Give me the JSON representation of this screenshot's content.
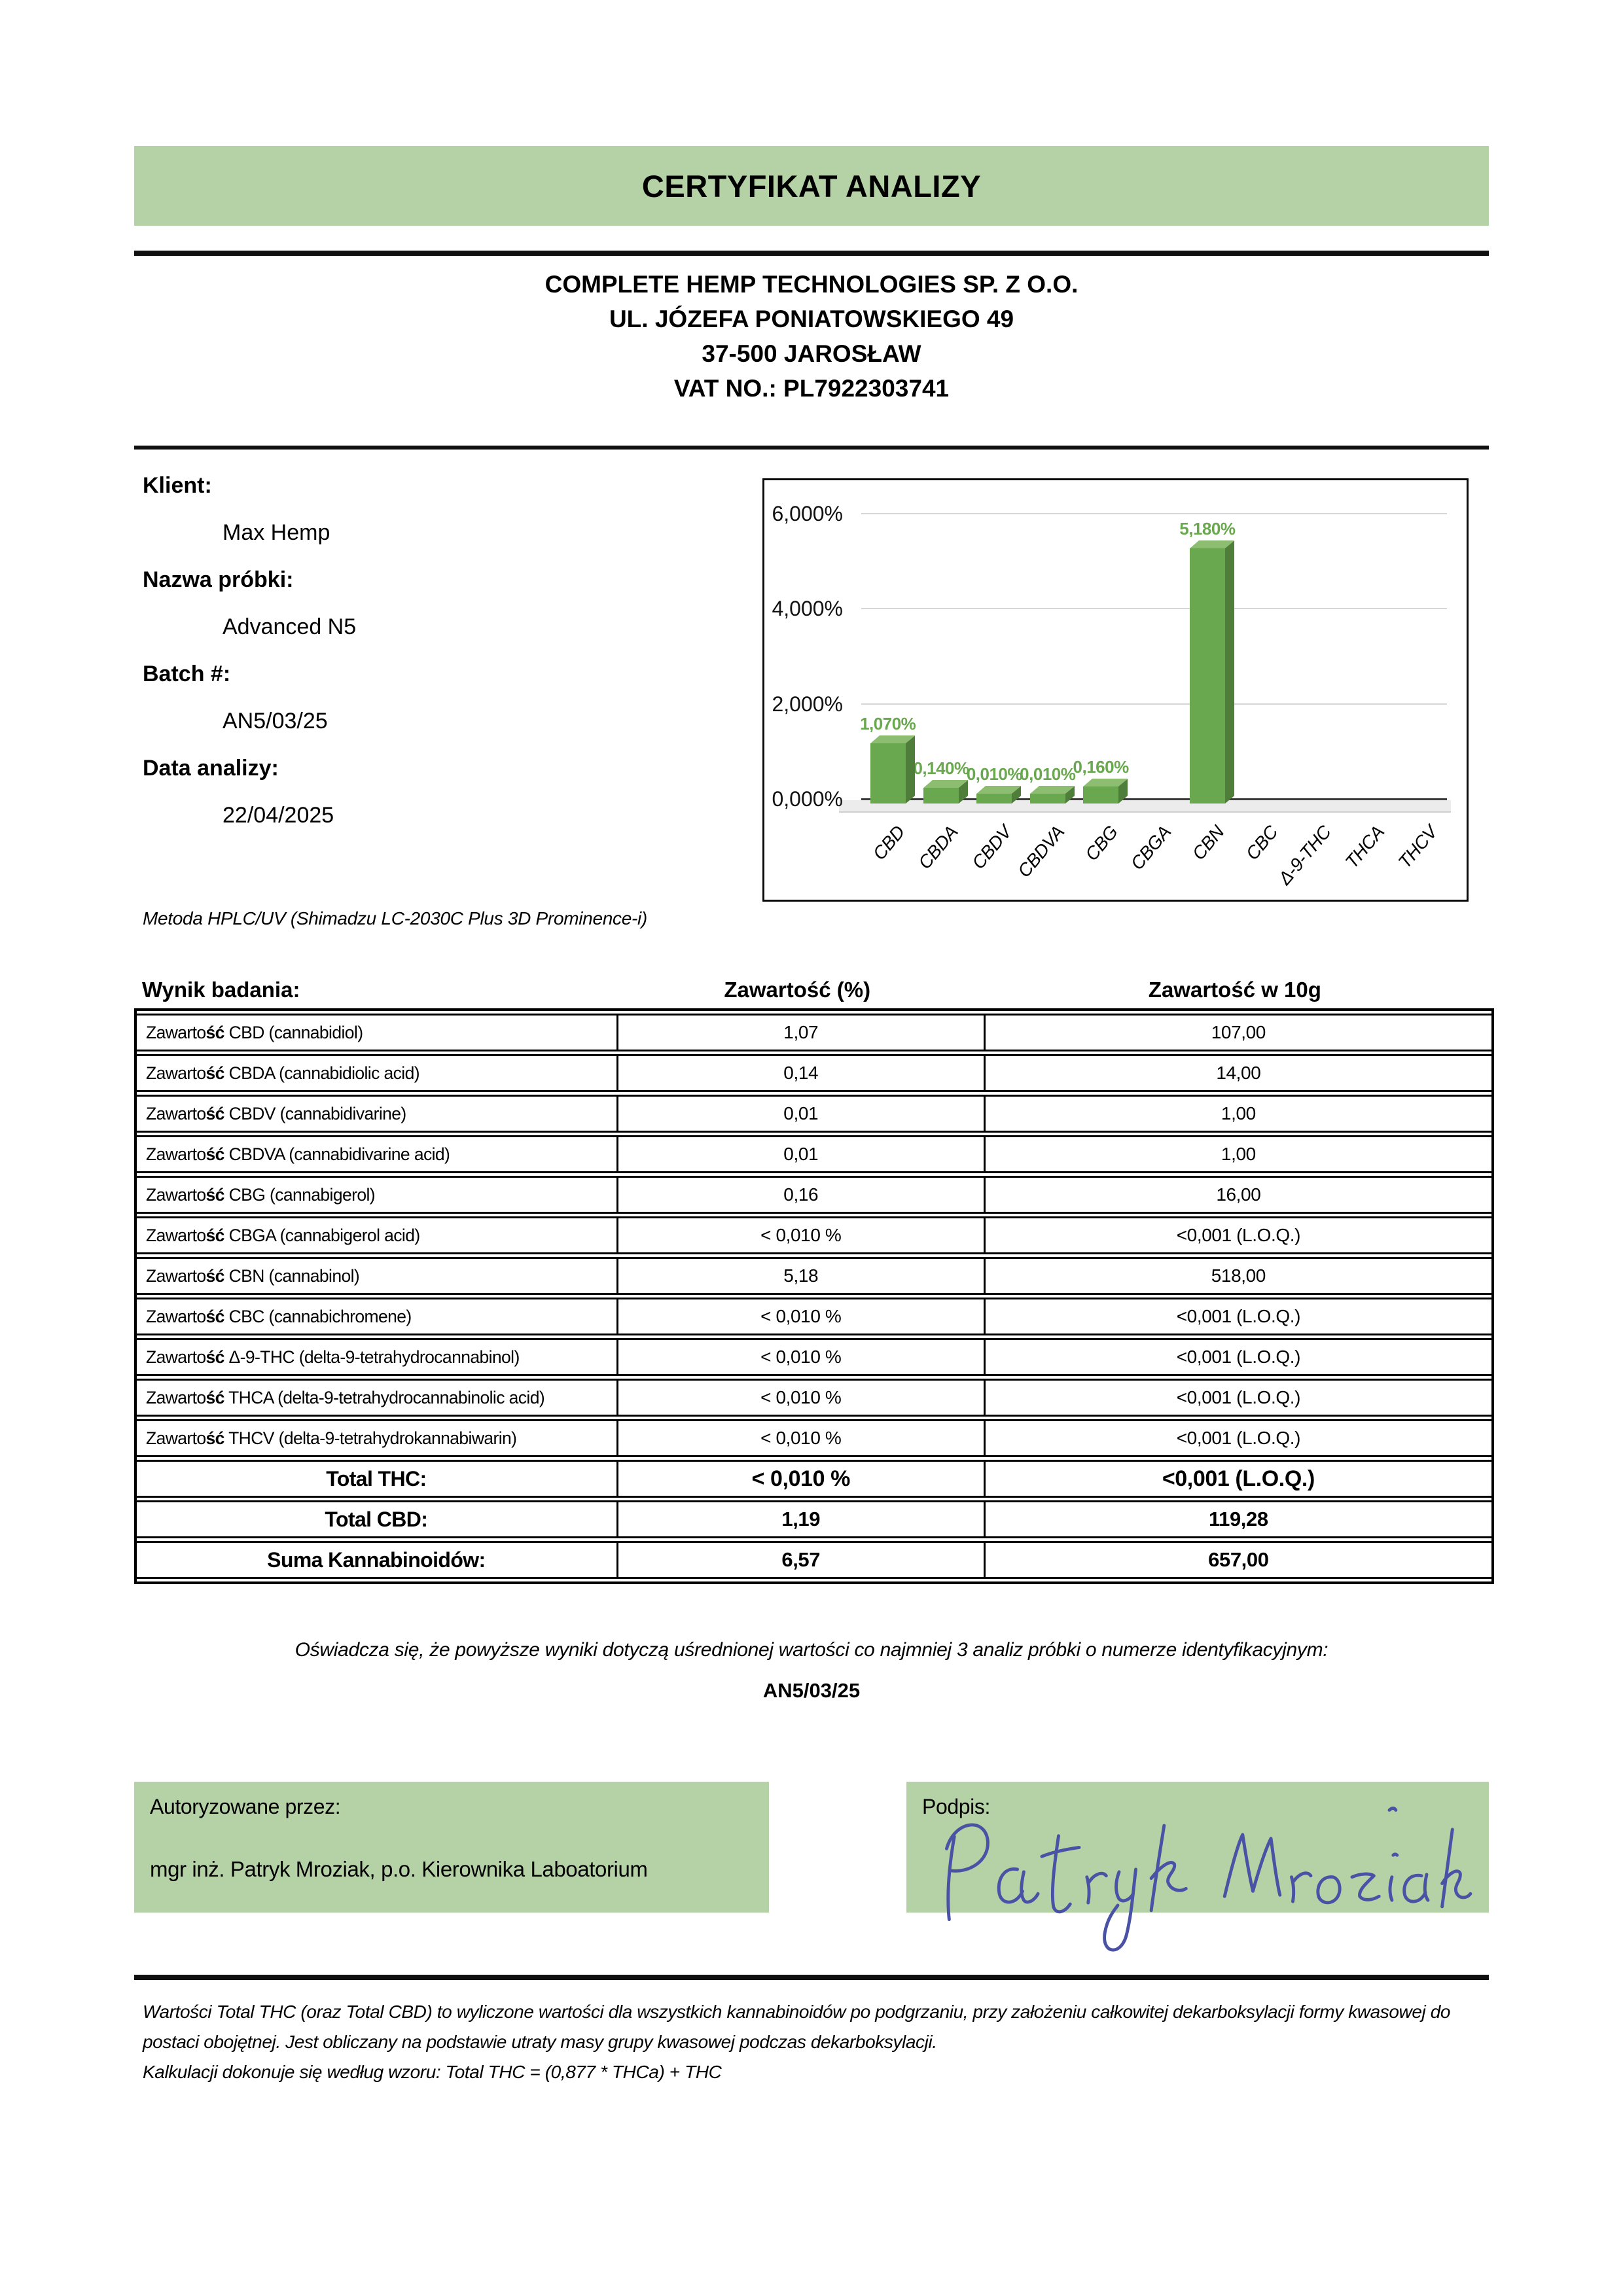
{
  "title": "CERTYFIKAT ANALIZY",
  "company": {
    "name": "COMPLETE HEMP TECHNOLOGIES SP. Z O.O.",
    "street": "UL. JÓZEFA PONIATOWSKIEGO 49",
    "city": "37-500 JAROSŁAW",
    "vat": "VAT NO.: PL7922303741"
  },
  "info": {
    "client_label": "Klient:",
    "client": "Max Hemp",
    "sample_label": "Nazwa próbki:",
    "sample": "Advanced N5",
    "batch_label": "Batch #:",
    "batch": "AN5/03/25",
    "date_label": "Data analizy:",
    "date": "22/04/2025"
  },
  "method": "Metoda HPLC/UV (Shimadzu LC-2030C Plus 3D Prominence-i)",
  "chart_data": {
    "type": "bar",
    "categories": [
      "CBD",
      "CBDA",
      "CBDV",
      "CBDVA",
      "CBG",
      "CBGA",
      "CBN",
      "CBC",
      "Δ-9-THC",
      "THCA",
      "THCV"
    ],
    "values": [
      1.07,
      0.14,
      0.01,
      0.01,
      0.16,
      0,
      5.18,
      0,
      0,
      0,
      0
    ],
    "labels": [
      "1,070%",
      "0,140%",
      "0,010%",
      "0,010%",
      "0,160%",
      "",
      "5,180%",
      "",
      "",
      "",
      ""
    ],
    "yticks": [
      "6,000%",
      "4,000%",
      "2,000%",
      "0,000%"
    ],
    "ylim": [
      0,
      6
    ],
    "grid": true,
    "title": "",
    "xlabel": "",
    "ylabel": "",
    "bar_color": "#6aa84f",
    "bar_side_color": "#4f7d3a",
    "bar_top_color": "#8cbd70",
    "value_label_color": "#6aa84f"
  },
  "table": {
    "col1": "Wynik badania:",
    "col2": "Zawartość (%)",
    "col3": "Zawartość w 10g",
    "rows": [
      {
        "label": "Zawartość CBD (cannabidiol)",
        "pct": "1,07",
        "per10g": "107,00"
      },
      {
        "label": "Zawartość CBDA (cannabidiolic acid)",
        "pct": "0,14",
        "per10g": "14,00"
      },
      {
        "label": "Zawartość CBDV (cannabidivarine)",
        "pct": "0,01",
        "per10g": "1,00"
      },
      {
        "label": "Zawartość CBDVA (cannabidivarine acid)",
        "pct": "0,01",
        "per10g": "1,00"
      },
      {
        "label": "Zawartość CBG (cannabigerol)",
        "pct": "0,16",
        "per10g": "16,00"
      },
      {
        "label": "Zawartość CBGA (cannabigerol acid)",
        "pct": "< 0,010 %",
        "per10g": "<0,001 (L.O.Q.)"
      },
      {
        "label": "Zawartość CBN (cannabinol)",
        "pct": "5,18",
        "per10g": "518,00"
      },
      {
        "label": "Zawartość CBC (cannabichromene)",
        "pct": "< 0,010 %",
        "per10g": "<0,001 (L.O.Q.)"
      },
      {
        "label": "Zawartość Δ-9-THC (delta-9-tetrahydrocannabinol)",
        "pct": "< 0,010 %",
        "per10g": "<0,001 (L.O.Q.)"
      },
      {
        "label": "Zawartość THCA (delta-9-tetrahydrocannabinolic acid)",
        "pct": "< 0,010 %",
        "per10g": "<0,001 (L.O.Q.)"
      },
      {
        "label": "Zawartość THCV (delta-9-tetrahydrokannabiwarin)",
        "pct": "< 0,010 %",
        "per10g": "<0,001 (L.O.Q.)"
      }
    ],
    "totals": [
      {
        "label": "Total THC:",
        "pct": "< 0,010 %",
        "per10g": "<0,001 (L.O.Q.)"
      },
      {
        "label": "Total CBD:",
        "pct": "1,19",
        "per10g": "119,28"
      },
      {
        "label": "Suma Kannabinoidów:",
        "pct": "6,57",
        "per10g": "657,00"
      }
    ]
  },
  "statement": "Oświadcza się, że powyższe wyniki dotyczą uśrednionej wartości co najmniej 3 analiz próbki o numerze identyfikacyjnym:",
  "statement_batch": "AN5/03/25",
  "authorization": {
    "label": "Autoryzowane przez:",
    "name": "mgr inż. Patryk Mroziak, p.o. Kierownika Laboatorium",
    "signature_label": "Podpis:",
    "signature_name": "Patryk Mroziak"
  },
  "footer": {
    "para1": "Wartości Total THC (oraz Total CBD) to wyliczone wartości dla wszystkich kannabinoidów po podgrzaniu, przy założeniu całkowitej dekarboksylacji formy kwasowej do postaci obojętnej. Jest obliczany na podstawie utraty masy grupy kwasowej podczas dekarboksylacji.",
    "para2": "Kalkulacji dokonuje się według wzoru: Total THC = (0,877 * THCa) + THC"
  },
  "colors": {
    "banner_green": "#b4d2a5",
    "bar_green": "#6aa84f",
    "signature_ink": "#4a52a5"
  }
}
